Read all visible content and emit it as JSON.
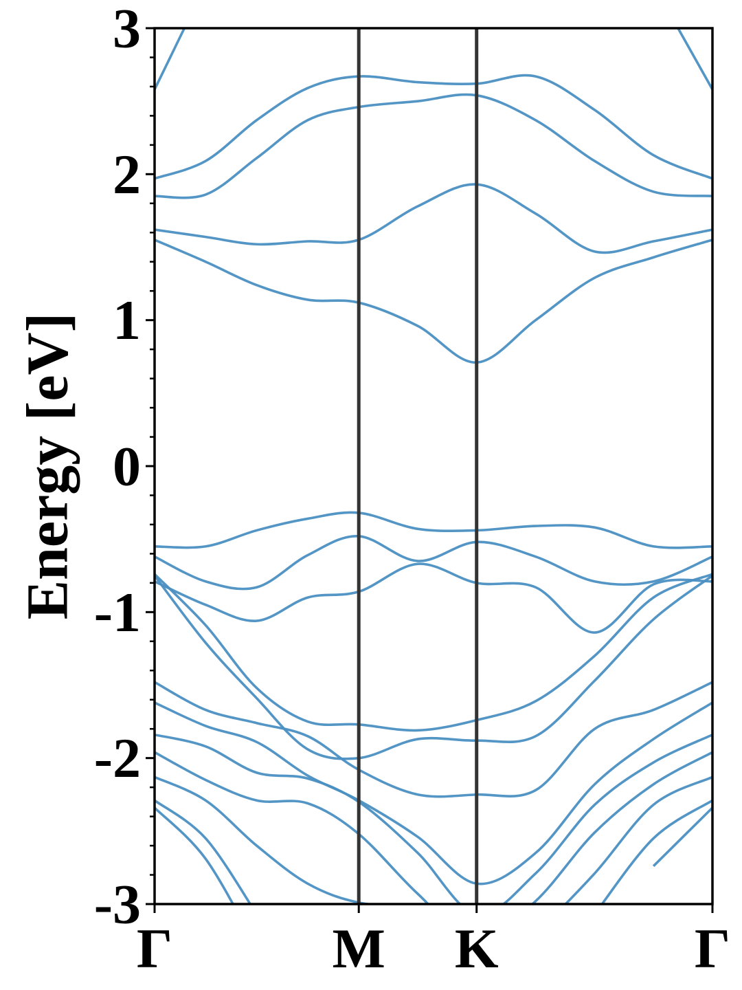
{
  "chart_data": {
    "type": "line",
    "y_label": "Energy [eV]",
    "x": [
      0,
      0.25,
      0.5,
      0.75,
      1,
      1.289,
      1.577,
      1.866,
      2.155,
      2.443,
      2.732
    ],
    "xlim": [
      0,
      2.732
    ],
    "xticks": [
      {
        "value": 0,
        "label": "Γ"
      },
      {
        "value": 1,
        "label": "M"
      },
      {
        "value": 1.577,
        "label": "K"
      },
      {
        "value": 2.732,
        "label": "Γ"
      }
    ],
    "ylim": [
      -3,
      3
    ],
    "yticks": [
      -3,
      -2,
      -1,
      0,
      1,
      2,
      3
    ],
    "yminorticks": [
      -2.8,
      -2.6,
      -2.4,
      -2.2,
      -1.8,
      -1.6,
      -1.4,
      -1.2,
      -0.8,
      -0.6,
      -0.4,
      -0.2,
      0.2,
      0.4,
      0.6,
      0.8,
      1.2,
      1.4,
      1.6,
      1.8,
      2.2,
      2.4,
      2.6,
      2.8
    ],
    "kpath_lines": true,
    "color": "#4a8fc2",
    "series": [
      {
        "values": [
          2.58,
          3.3,
          null,
          null,
          null,
          null,
          null,
          null,
          null,
          3.3,
          2.58
        ]
      },
      {
        "values": [
          1.97,
          2.09,
          2.37,
          2.59,
          2.67,
          2.63,
          2.62,
          2.67,
          2.44,
          2.13,
          1.97
        ]
      },
      {
        "values": [
          1.85,
          1.86,
          2.11,
          2.37,
          2.46,
          2.5,
          2.54,
          2.37,
          2.09,
          1.88,
          1.85
        ]
      },
      {
        "values": [
          1.62,
          1.57,
          1.52,
          1.54,
          1.55,
          1.78,
          1.93,
          1.73,
          1.47,
          1.54,
          1.62
        ]
      },
      {
        "values": [
          1.55,
          1.4,
          1.24,
          1.14,
          1.12,
          0.96,
          0.71,
          1.0,
          1.29,
          1.43,
          1.55
        ]
      },
      {
        "values": [
          -0.55,
          -0.55,
          -0.44,
          -0.36,
          -0.32,
          -0.43,
          -0.44,
          -0.41,
          -0.42,
          -0.55,
          -0.55
        ]
      },
      {
        "values": [
          -0.62,
          -0.79,
          -0.83,
          -0.61,
          -0.48,
          -0.65,
          -0.52,
          -0.62,
          -0.79,
          -0.79,
          -0.62
        ]
      },
      {
        "values": [
          -0.79,
          -0.95,
          -1.06,
          -0.9,
          -0.86,
          -0.67,
          -0.8,
          -0.83,
          -1.14,
          -0.81,
          -0.79
        ]
      },
      {
        "values": [
          -0.74,
          -1.09,
          -1.52,
          -1.75,
          -1.77,
          -1.81,
          -1.74,
          -1.61,
          -1.3,
          -0.9,
          -0.74
        ]
      },
      {
        "values": [
          -0.75,
          -1.21,
          -1.59,
          -1.94,
          -2.0,
          -1.87,
          -1.88,
          -1.85,
          -1.47,
          -1.05,
          -0.75
        ]
      },
      {
        "values": [
          -1.48,
          -1.67,
          -1.76,
          -1.85,
          -2.08,
          -2.25,
          -2.25,
          -2.22,
          -1.8,
          -1.67,
          -1.48
        ]
      },
      {
        "values": [
          -1.62,
          -1.78,
          -1.89,
          -2.12,
          -2.29,
          -2.54,
          -2.86,
          -2.65,
          -2.18,
          -1.87,
          -1.62
        ]
      },
      {
        "values": [
          -1.84,
          -1.92,
          -2.1,
          -2.14,
          -2.3,
          -2.65,
          -3.07,
          -2.79,
          -2.32,
          -2.03,
          -1.84
        ]
      },
      {
        "values": [
          -1.96,
          -2.15,
          -2.29,
          -2.31,
          -2.52,
          -2.93,
          -3.26,
          -2.98,
          -2.51,
          -2.18,
          -1.96
        ]
      },
      {
        "values": [
          -2.13,
          -2.29,
          -2.6,
          -2.86,
          -2.99,
          -3.02,
          null,
          -3.21,
          -2.79,
          -2.32,
          -2.13
        ]
      },
      {
        "values": [
          -2.29,
          -2.55,
          -3.07,
          null,
          null,
          null,
          null,
          null,
          -3.07,
          -2.55,
          -2.29
        ]
      },
      {
        "values": [
          -2.34,
          -2.69,
          -3.3,
          null,
          null,
          null,
          null,
          null,
          null,
          -2.74,
          -2.34
        ]
      }
    ]
  }
}
